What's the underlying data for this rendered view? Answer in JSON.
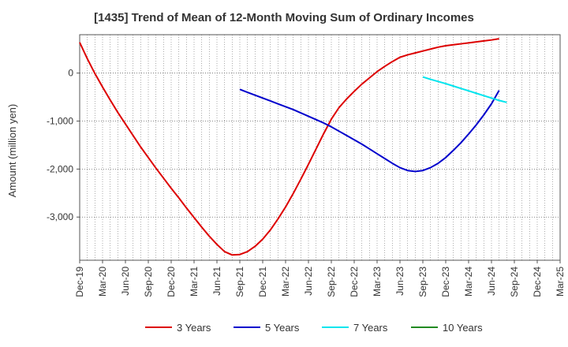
{
  "chart_data": {
    "type": "line",
    "title": "[1435]  Trend of Mean of 12-Month Moving Sum of Ordinary Incomes",
    "xlabel": "",
    "ylabel": "Amount (million yen)",
    "ylim": [
      -3900,
      800
    ],
    "yticks": [
      0,
      -1000,
      -2000,
      -3000
    ],
    "ytick_labels": [
      "0",
      "-1,000",
      "-2,000",
      "-3,000"
    ],
    "xticks": [
      "Dec-19",
      "Mar-20",
      "Jun-20",
      "Sep-20",
      "Dec-20",
      "Mar-21",
      "Jun-21",
      "Sep-21",
      "Dec-21",
      "Mar-22",
      "Jun-22",
      "Sep-22",
      "Dec-22",
      "Mar-23",
      "Jun-23",
      "Sep-23",
      "Dec-23",
      "Mar-24",
      "Jun-24",
      "Sep-24",
      "Dec-24",
      "Mar-25"
    ],
    "grid": true,
    "legend_position": "bottom",
    "series": [
      {
        "name": "3 Years",
        "color": "#dd0000",
        "start_index": 0,
        "values": [
          640,
          300,
          -10,
          -290,
          -560,
          -820,
          -1060,
          -1300,
          -1540,
          -1760,
          -1980,
          -2190,
          -2400,
          -2600,
          -2810,
          -3010,
          -3210,
          -3400,
          -3570,
          -3720,
          -3790,
          -3780,
          -3720,
          -3610,
          -3460,
          -3270,
          -3040,
          -2790,
          -2510,
          -2210,
          -1900,
          -1580,
          -1260,
          -960,
          -720,
          -540,
          -380,
          -230,
          -100,
          30,
          140,
          240,
          330,
          380,
          420,
          460,
          500,
          540,
          570,
          590,
          610,
          630,
          650,
          670,
          690,
          715
        ]
      },
      {
        "name": "5 Years",
        "color": "#0000cc",
        "start_index": 21,
        "values": [
          -340,
          -400,
          -460,
          -520,
          -580,
          -640,
          -700,
          -760,
          -830,
          -900,
          -970,
          -1040,
          -1120,
          -1210,
          -1300,
          -1390,
          -1480,
          -1580,
          -1680,
          -1780,
          -1880,
          -1970,
          -2030,
          -2050,
          -2030,
          -1970,
          -1880,
          -1760,
          -1610,
          -1450,
          -1270,
          -1080,
          -870,
          -640,
          -360
        ]
      },
      {
        "name": "7 Years",
        "color": "#00e5ee",
        "start_index": 45,
        "values": [
          -80,
          -130,
          -175,
          -220,
          -270,
          -320,
          -370,
          -420,
          -470,
          -520,
          -570,
          -610
        ]
      },
      {
        "name": "10 Years",
        "color": "#228b22",
        "start_index": 45,
        "values": []
      }
    ]
  }
}
